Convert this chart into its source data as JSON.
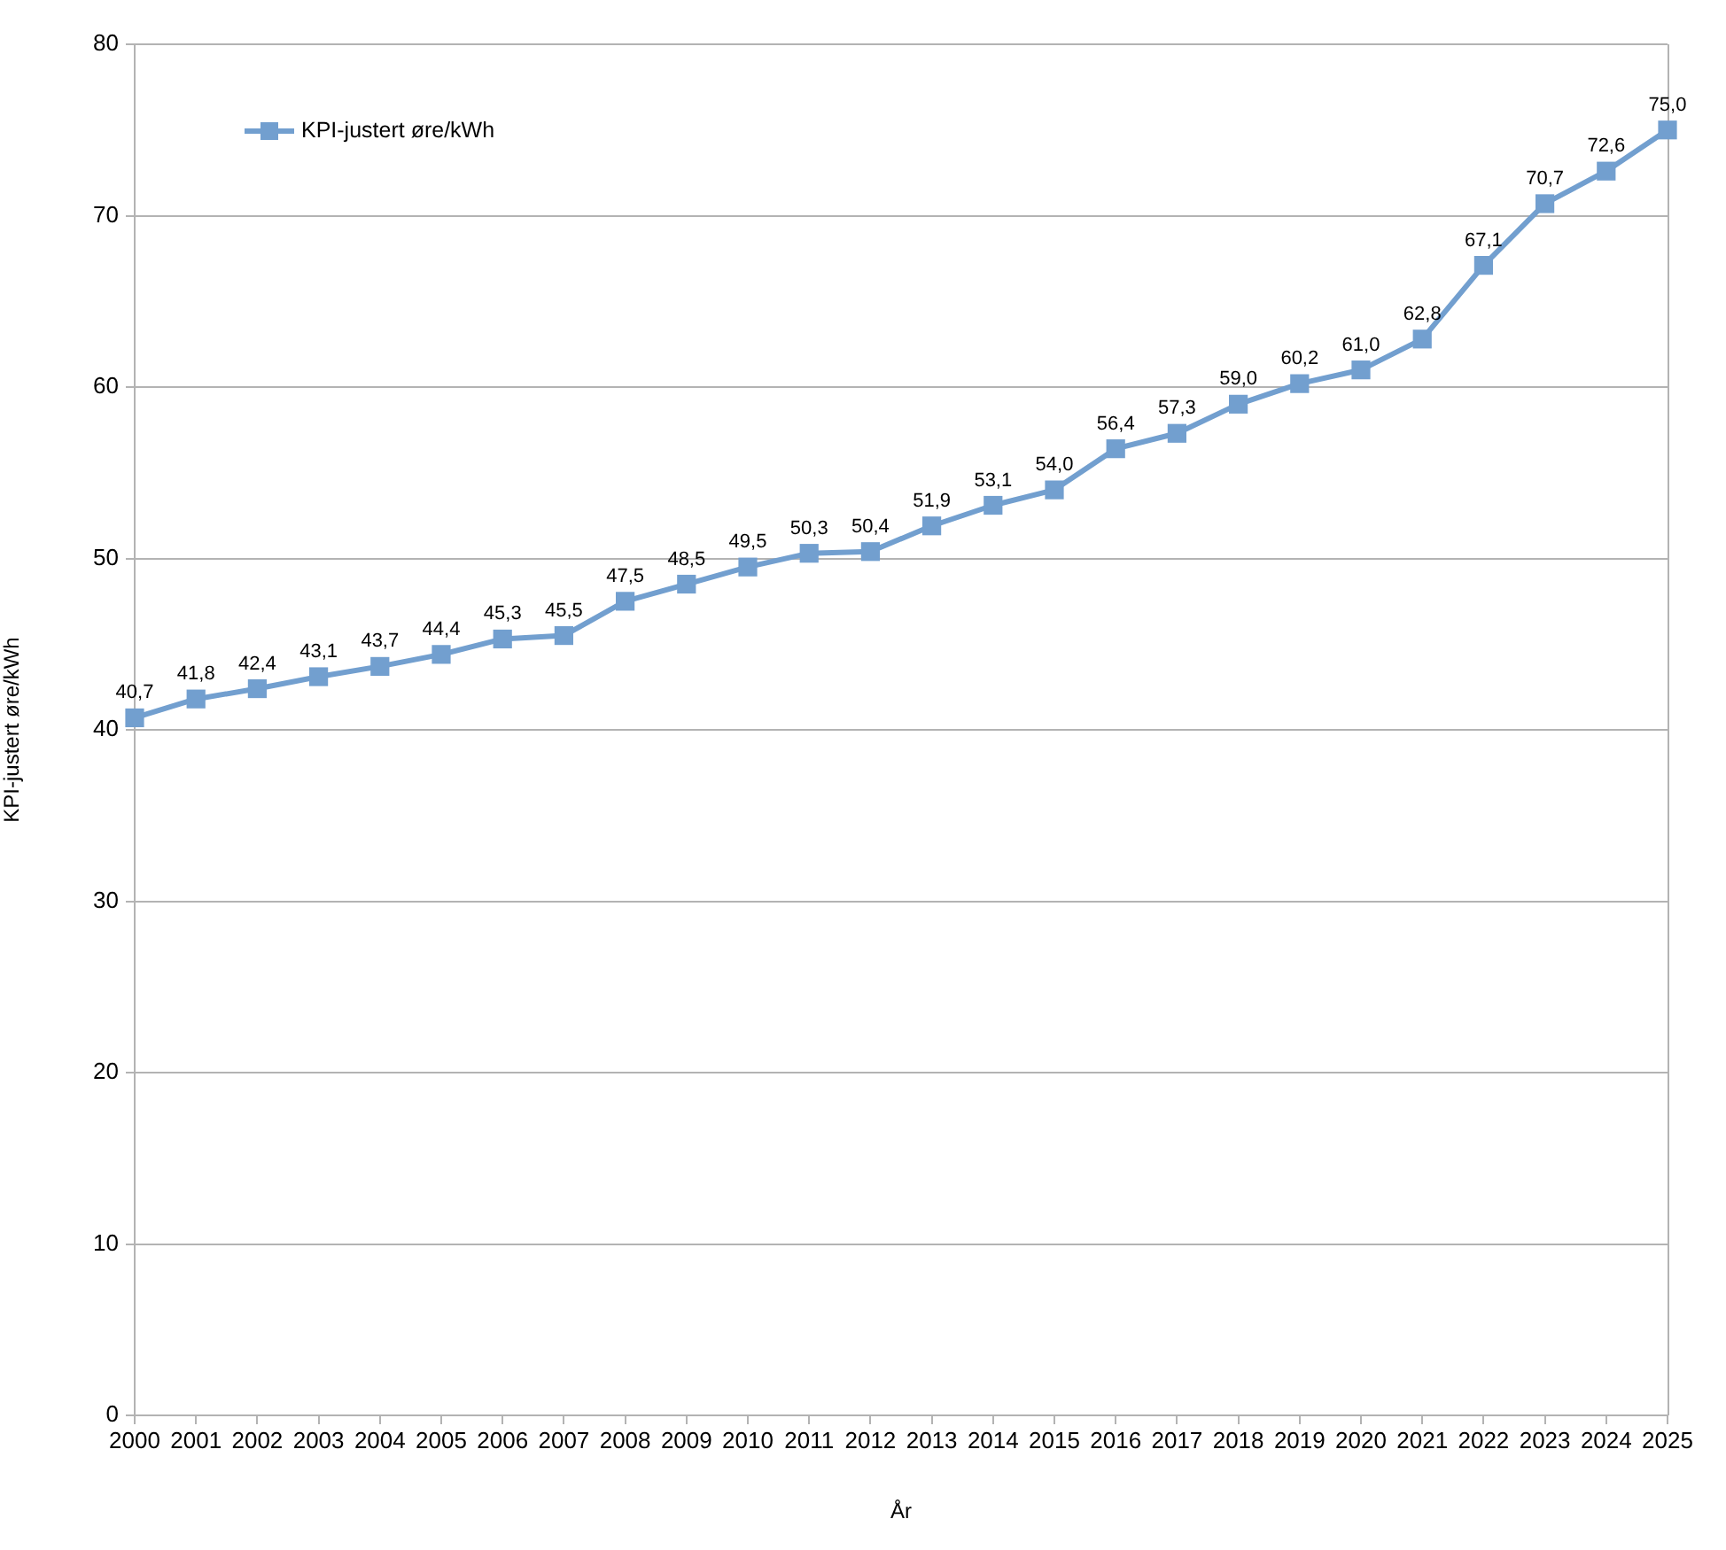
{
  "chart_data": {
    "type": "line",
    "xlabel": "År",
    "ylabel": "KPI-justert øre/kWh",
    "categories": [
      "2000",
      "2001",
      "2002",
      "2003",
      "2004",
      "2005",
      "2006",
      "2007",
      "2008",
      "2009",
      "2010",
      "2011",
      "2012",
      "2013",
      "2014",
      "2015",
      "2016",
      "2017",
      "2018",
      "2019",
      "2020",
      "2021",
      "2022",
      "2023",
      "2024",
      "2025"
    ],
    "series": [
      {
        "name": "KPI-justert øre/kWh",
        "color": "#729fcf",
        "values": [
          40.7,
          41.8,
          42.4,
          43.1,
          43.7,
          44.4,
          45.3,
          45.5,
          47.5,
          48.5,
          49.5,
          50.3,
          50.4,
          51.9,
          53.1,
          54.0,
          56.4,
          57.3,
          59.0,
          60.2,
          61.0,
          62.8,
          67.1,
          70.7,
          72.6,
          75.0
        ],
        "value_labels": [
          "40,7",
          "41,8",
          "42,4",
          "43,1",
          "43,7",
          "44,4",
          "45,3",
          "45,5",
          "47,5",
          "48,5",
          "49,5",
          "50,3",
          "50,4",
          "51,9",
          "53,1",
          "54,0",
          "56,4",
          "57,3",
          "59,0",
          "60,2",
          "61,0",
          "62,8",
          "67,1",
          "70,7",
          "72,6",
          "75,0"
        ]
      }
    ],
    "ylim": [
      0,
      80
    ],
    "yticks": [
      0,
      10,
      20,
      30,
      40,
      50,
      60,
      70,
      80
    ],
    "grid": "y",
    "legend": "top left",
    "marker": "square",
    "line_style": "solid"
  }
}
